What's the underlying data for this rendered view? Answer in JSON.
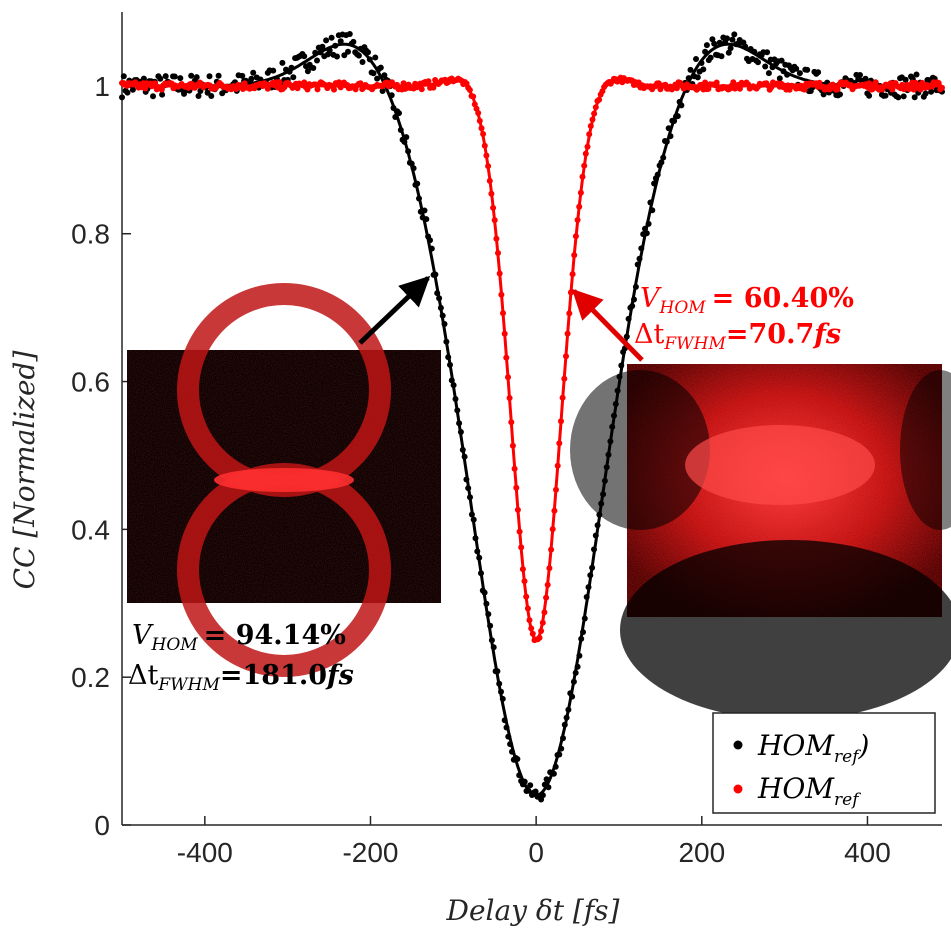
{
  "chart_data": {
    "type": "scatter",
    "title": "",
    "xlabel": "Delay δt [fs]",
    "ylabel": "CC [Normalized]",
    "xlim": [
      -500,
      490
    ],
    "ylim": [
      0,
      1.1
    ],
    "xticks": [
      -400,
      -200,
      0,
      200,
      400
    ],
    "xtick_labels": [
      "-400",
      "-200",
      "0",
      "200",
      "400"
    ],
    "yticks": [
      0,
      0.2,
      0.4,
      0.6,
      0.8,
      1
    ],
    "ytick_labels": [
      "0",
      "0.2",
      "0.4",
      "0.6",
      "0.8",
      "1"
    ],
    "grid": false,
    "legend_position": "bottom-right",
    "series": [
      {
        "name": "HOM_ref)",
        "legend_label": "HOM",
        "legend_subscript": "ref",
        "legend_suffix": ")",
        "color": "#000000",
        "model": {
          "type": "hom_dip_with_shoulders",
          "center": 0,
          "min": 0.04,
          "fwhm": 181.0,
          "shoulder_height": 0.07,
          "shoulder_position": 215
        }
      },
      {
        "name": "HOM_ref",
        "legend_label": "HOM",
        "legend_subscript": "ref",
        "legend_suffix": "",
        "color": "#ff0000",
        "model": {
          "type": "hom_dip",
          "center": 0,
          "min": 0.25,
          "fwhm": 70.7,
          "shoulder_height": 0.015,
          "shoulder_position": 85
        }
      }
    ],
    "annotations": [
      {
        "color": "#000000",
        "vhom_label": "V",
        "vhom_sub": "HOM",
        "vhom_value": "= 94.14%",
        "fwhm_label": "Δt",
        "fwhm_sub": "FWHM",
        "fwhm_value": "=181.0",
        "fwhm_unit": "fs",
        "arrow_to": [
          -115,
          0.76
        ]
      },
      {
        "color": "#ff0000",
        "vhom_label": "V",
        "vhom_sub": "HOM",
        "vhom_value": "= 60.40%",
        "fwhm_label": "Δt",
        "fwhm_sub": "FWHM",
        "fwhm_value": "=70.7",
        "fwhm_unit": "fs",
        "arrow_to": [
          45,
          0.73
        ]
      }
    ],
    "insets": [
      {
        "description_shape": "two-rings-touching"
      },
      {
        "description_shape": "blurred-bright-band"
      }
    ]
  }
}
